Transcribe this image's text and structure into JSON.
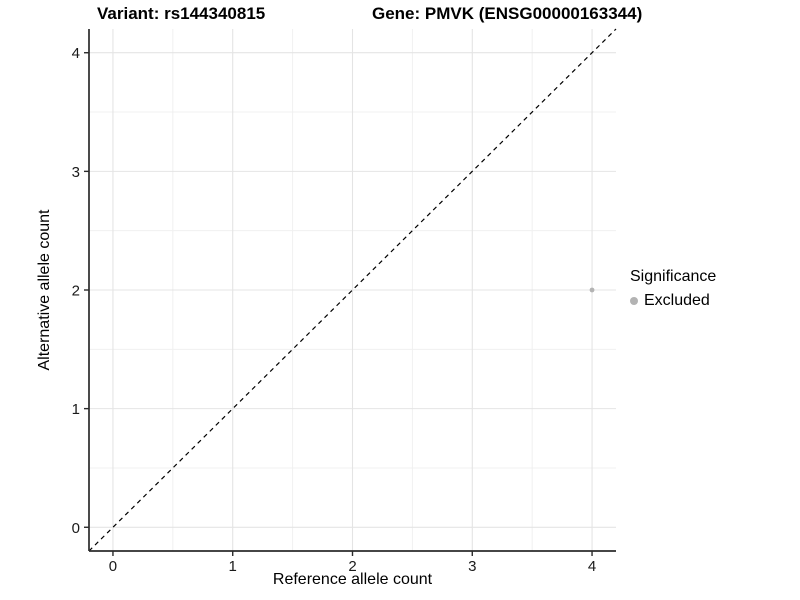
{
  "title": {
    "variant_label": "Variant: rs144340815",
    "gene_label": "Gene: PMVK (ENSG00000163344)"
  },
  "chart_data": {
    "type": "scatter",
    "xlabel": "Reference allele count",
    "ylabel": "Alternative allele count",
    "xlim": [
      -0.2,
      4.2
    ],
    "ylim": [
      -0.2,
      4.2
    ],
    "x_major_ticks": [
      0,
      1,
      2,
      3,
      4
    ],
    "y_major_ticks": [
      0,
      1,
      2,
      3,
      4
    ],
    "x_minor_ticks": [
      0.5,
      1.5,
      2.5,
      3.5
    ],
    "y_minor_ticks": [
      0.5,
      1.5,
      2.5,
      3.5
    ],
    "grid": true,
    "reference_line": {
      "slope": 1,
      "intercept": 0,
      "linetype": "dashed",
      "color": "#000000"
    },
    "series": [
      {
        "name": "Excluded",
        "color": "#b3b3b3",
        "points": [
          {
            "x": 4,
            "y": 2
          }
        ]
      }
    ],
    "legend": {
      "title": "Significance",
      "position": "right",
      "items": [
        {
          "label": "Excluded",
          "color": "#b3b3b3"
        }
      ]
    },
    "colors": {
      "major_grid": "#e4e4e4",
      "minor_grid": "#f0f0f0",
      "axis_line": "#2b2b2b",
      "tick_text": "#1a1a1a",
      "panel_background": "#ffffff"
    }
  }
}
